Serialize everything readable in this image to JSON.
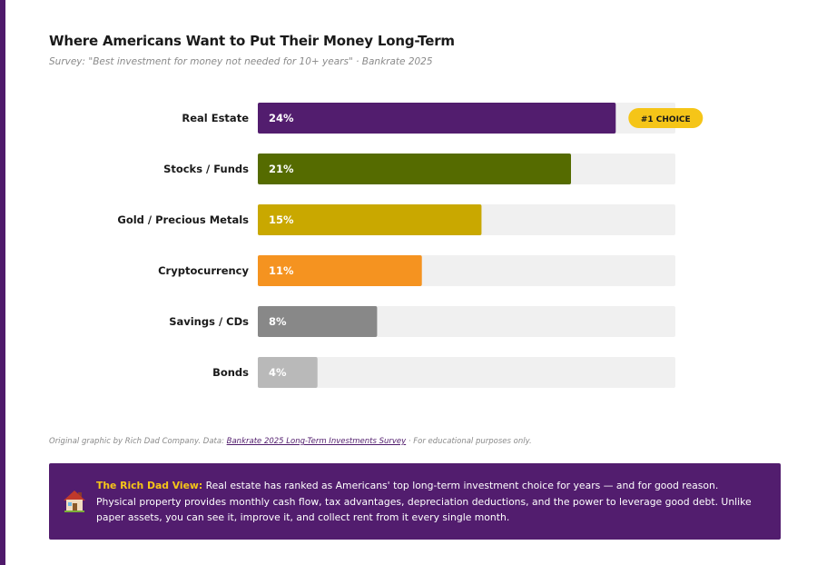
{
  "title": "Where Americans Want to Put Their Money Long-Term",
  "subtitle": "Survey: \"Best investment for money not needed for 10+ years\" · Bankrate 2025",
  "chart_data": {
    "type": "bar",
    "orientation": "horizontal",
    "categories": [
      "Real Estate",
      "Stocks / Funds",
      "Gold / Precious Metals",
      "Cryptocurrency",
      "Savings / CDs",
      "Bonds"
    ],
    "values": [
      24,
      21,
      15,
      11,
      8,
      4
    ],
    "value_labels": [
      "24%",
      "21%",
      "15%",
      "11%",
      "8%",
      "4%"
    ],
    "colors": [
      "#521d6e",
      "#556b00",
      "#c9a800",
      "#f59320",
      "#888888",
      "#b9b9b9"
    ],
    "track_color": "#f0f0f0",
    "xlim": [
      0,
      28
    ],
    "badge": {
      "category": "Real Estate",
      "text": "#1 CHOICE",
      "color": "#f5c518"
    },
    "grid": false
  },
  "source": {
    "prefix": "Original graphic by Rich Dad Company. Data: ",
    "link_text": "Bankrate 2025 Long-Term Investments Survey",
    "suffix": " · For educational purposes only."
  },
  "callout": {
    "icon": "house-icon",
    "lead": "The Rich Dad View:",
    "text": " Real estate has ranked as Americans' top long-term investment choice for years — and for good reason. Physical property provides monthly cash flow, tax advantages, depreciation deductions, and the power to leverage good debt. Unlike paper assets, you can see it, improve it, and collect rent from it every single month."
  }
}
